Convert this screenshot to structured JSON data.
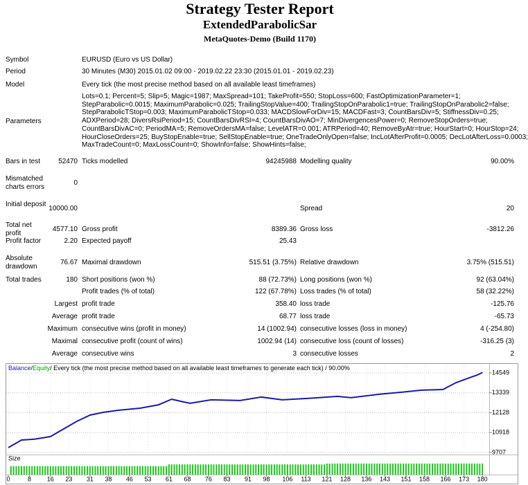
{
  "header": {
    "title": "Strategy Tester Report",
    "subtitle": "ExtendedParabolicSar",
    "server": "MetaQuotes-Demo (Build 1170)"
  },
  "info": [
    {
      "label": "Symbol",
      "value": "EURUSD (Euro vs US Dollar)"
    },
    {
      "label": "Period",
      "value": "30 Minutes (M30) 2015.01.02 09:00 - 2019.02.22 23:30 (2015.01.01 - 2019.02.23)"
    },
    {
      "label": "Model",
      "value": "Every tick (the most precise method based on all available least timeframes)"
    }
  ],
  "parameters": {
    "label": "Parameters",
    "lines": [
      "Lots=0.1; Percent=5; Slip=5; Magic=1987; MaxSpread=101; TakeProfit=550; StopLoss=600; FastOptimizationParameter=1;",
      "StepParabolic=0.0015; MaximumParabolic=0.025; TrailingStopValue=400; TrailingStopOnParabolic1=true; TrailingStopOnParabolic2=false;",
      "StepParabolicTStop=0.003; MaximumParabolicTStop=0.033; MACDSlowForDiv=15; MACDFast=3; CountBarsDiv=5; StiffnessDiv=0.25;",
      "ADXPeriod=28; DiversRsiPeriod=15; CountBarsDivRSI=4; CountBarsDivAO=7; MinDivergencesPower=0; RemoveStopOrders=true;",
      "CountBarsDivAC=0; PeriodMA=5; RemoveOrdersMA=false; LevelATR=0.001; ATRPeriod=40; RemoveByAtr=true; HourStart=0; HourStop=24;",
      "HourCloseOrders=25; BuyStopEnable=true; SellStopEnable=true; OneTradeOnlyOpen=false; IncLotAfterProfit=0.0005; DecLotAfterLoss=0.0003;",
      "MaxTradeCount=0; MaxLossCount=0; ShowInfo=false; ShowHints=false;"
    ]
  },
  "stats": [
    {
      "label": "Bars in test",
      "value": "52470",
      "label2": "Ticks modelled",
      "value2": "94245988",
      "label3": "Modelling quality",
      "value3": "90.00%"
    },
    {
      "label": "Mismatched charts errors",
      "value": "0"
    },
    {
      "label": "Initial deposit",
      "value": "10000.00",
      "label3": "Spread",
      "value3": "20"
    },
    {
      "label": "Total net profit",
      "value": "4577.10",
      "label2": "Gross profit",
      "value2": "8389.36",
      "label3": "Gross loss",
      "value3": "-3812.26"
    },
    {
      "label": "Profit factor",
      "value": "2.20",
      "label2": "Expected payoff",
      "value2": "25.43"
    },
    {
      "label": "Absolute drawdown",
      "value": "76.67",
      "label2": "Maximal drawdown",
      "value2": "515.51 (3.75%)",
      "label3": "Relative drawdown",
      "value3": "3.75% (515.51)"
    },
    {
      "label": "Total trades",
      "value": "180",
      "label2": "Short positions (won %)",
      "value2": "88 (72.73%)",
      "label3": "Long positions (won %)",
      "value3": "92 (63.04%)"
    },
    {
      "label2": "Profit trades (% of total)",
      "value2": "122 (67.78%)",
      "label3": "Loss trades (% of total)",
      "value3": "58 (32.22%)"
    },
    {
      "value": "Largest",
      "label2": "profit trade",
      "value2": "358.40",
      "label3": "loss trade",
      "value3": "-125.76"
    },
    {
      "value": "Average",
      "label2": "profit trade",
      "value2": "68.77",
      "label3": "loss trade",
      "value3": "-65.73"
    },
    {
      "value": "Maximum",
      "label2": "consecutive wins (profit in money)",
      "value2": "14 (1002.94)",
      "label3": "consecutive losses (loss in money)",
      "value3": "4 (-254.80)"
    },
    {
      "value": "Maximal",
      "label2": "consecutive profit (count of wins)",
      "value2": "1002.94 (14)",
      "label3": "consecutive loss (count of losses)",
      "value3": "-316.25 (3)"
    },
    {
      "value": "Average",
      "label2": "consecutive wins",
      "value2": "3",
      "label3": "consecutive losses",
      "value3": "2"
    }
  ],
  "chart_data": {
    "type": "line",
    "legend_separator": "/",
    "legend_note": "/ Every tick (the most precise method based on all available least timeframes to generate each tick) / 90.00%",
    "x": [
      0,
      5,
      10,
      16,
      21,
      26,
      31,
      36,
      42,
      50,
      57,
      62,
      66,
      69,
      77,
      88,
      96,
      104,
      114,
      125,
      130,
      141,
      149,
      157,
      165,
      170,
      175,
      178,
      180
    ],
    "series": [
      {
        "name": "Balance",
        "color": "#1a1aa6",
        "values": [
          10000,
          10465,
          10520,
          10675,
          11140,
          11600,
          11980,
          12150,
          12280,
          12400,
          12610,
          12950,
          12800,
          12700,
          12910,
          12870,
          13080,
          12910,
          13000,
          13120,
          13040,
          13250,
          13370,
          13500,
          13540,
          13960,
          14250,
          14420,
          14577.1
        ]
      },
      {
        "name": "Equity",
        "color": "#00a000"
      }
    ],
    "size": {
      "name": "Size",
      "color": "#00c800",
      "values": [
        null,
        0.1,
        0.1,
        0.1,
        0.1,
        0.1,
        0.1,
        0.1,
        0.1,
        0.1,
        0.1,
        0.1,
        0.1,
        0.1,
        0.1,
        0.1,
        0.1,
        0.1,
        0.1,
        0.1,
        0.1,
        0.1,
        0.1,
        0.1,
        0.1,
        0.1,
        0.1,
        0.1,
        0.1,
        0.1,
        0.1,
        0.1,
        0.1,
        0.1,
        0.1,
        0.1,
        0.1,
        0.1,
        0.1,
        0.1,
        0.1,
        0.1,
        0.1,
        0.1,
        0.1,
        0.1,
        0.1,
        0.1,
        0.1,
        0.1,
        0.1,
        0.1,
        0.1,
        0.1,
        0.1,
        0.1,
        0.1,
        0.1,
        0.1,
        0.1,
        0.1,
        0.12,
        0.12,
        0.12,
        0.12,
        0.12,
        0.12,
        0.12,
        0.12,
        0.12,
        0.12,
        0.12,
        0.12,
        0.12,
        0.12,
        0.12,
        0.12,
        0.12,
        0.12,
        0.12,
        0.12,
        0.12,
        0.12,
        0.12,
        0.12,
        0.12,
        0.12,
        0.12,
        0.12,
        0.12,
        0.12,
        0.12,
        0.12,
        0.12,
        0.12,
        0.12,
        0.12,
        0.12,
        0.12,
        0.12,
        0.12,
        0.12,
        0.12,
        0.12,
        0.12,
        0.12,
        0.12,
        0.12,
        0.12,
        0.12,
        0.12,
        0.12,
        0.12,
        0.12,
        0.12,
        0.12,
        0.12,
        0.12,
        0.12,
        0.12,
        0.12,
        0.13,
        0.13,
        0.13,
        0.13,
        0.13,
        0.13,
        0.13,
        0.13,
        0.13,
        0.13,
        0.13,
        0.13,
        0.13,
        0.13,
        0.13,
        0.13,
        0.13,
        0.13,
        0.13,
        0.13,
        0.13,
        0.13,
        0.13,
        0.13,
        0.13,
        0.13,
        0.13,
        0.13,
        0.13,
        0.13,
        0.13,
        0.13,
        0.13,
        0.13,
        0.13,
        0.13,
        0.13,
        0.13,
        0.13,
        0.13,
        0.13,
        0.13,
        0.13,
        0.13,
        0.13,
        0.13,
        0.13,
        0.13,
        0.13,
        0.13,
        0.13,
        0.13,
        0.13,
        0.13,
        0.13,
        0.13,
        0.13,
        0.13,
        0.13,
        0.13
      ]
    },
    "xlim": [
      0,
      181
    ],
    "xticks": [
      0,
      8,
      16,
      23,
      31,
      38,
      46,
      53,
      61,
      68,
      76,
      83,
      91,
      98,
      106,
      113,
      121,
      128,
      136,
      143,
      151,
      158,
      166,
      173,
      180
    ],
    "ylim": [
      9665,
      14633
    ],
    "yticks": [
      9707,
      10918,
      12128,
      13339,
      14549
    ],
    "grid": true
  }
}
